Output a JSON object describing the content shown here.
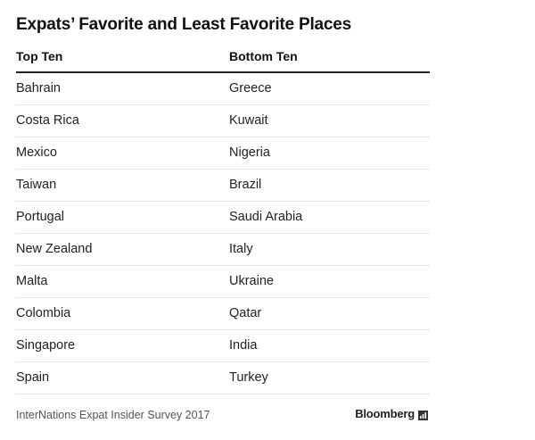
{
  "title": "Expats’ Favorite and Least Favorite Places",
  "table": {
    "headers": [
      "Top Ten",
      "Bottom Ten"
    ],
    "rows": [
      [
        "Bahrain",
        "Greece"
      ],
      [
        "Costa Rica",
        "Kuwait"
      ],
      [
        "Mexico",
        "Nigeria"
      ],
      [
        "Taiwan",
        "Brazil"
      ],
      [
        "Portugal",
        "Saudi Arabia"
      ],
      [
        "New Zealand",
        "Italy"
      ],
      [
        "Malta",
        "Ukraine"
      ],
      [
        "Colombia",
        "Qatar"
      ],
      [
        "Singapore",
        "India"
      ],
      [
        "Spain",
        "Turkey"
      ]
    ]
  },
  "footer": {
    "source": "InterNations Expat Insider Survey 2017",
    "brand": "Bloomberg",
    "brand_icon": "bloomberg-chart-icon"
  }
}
